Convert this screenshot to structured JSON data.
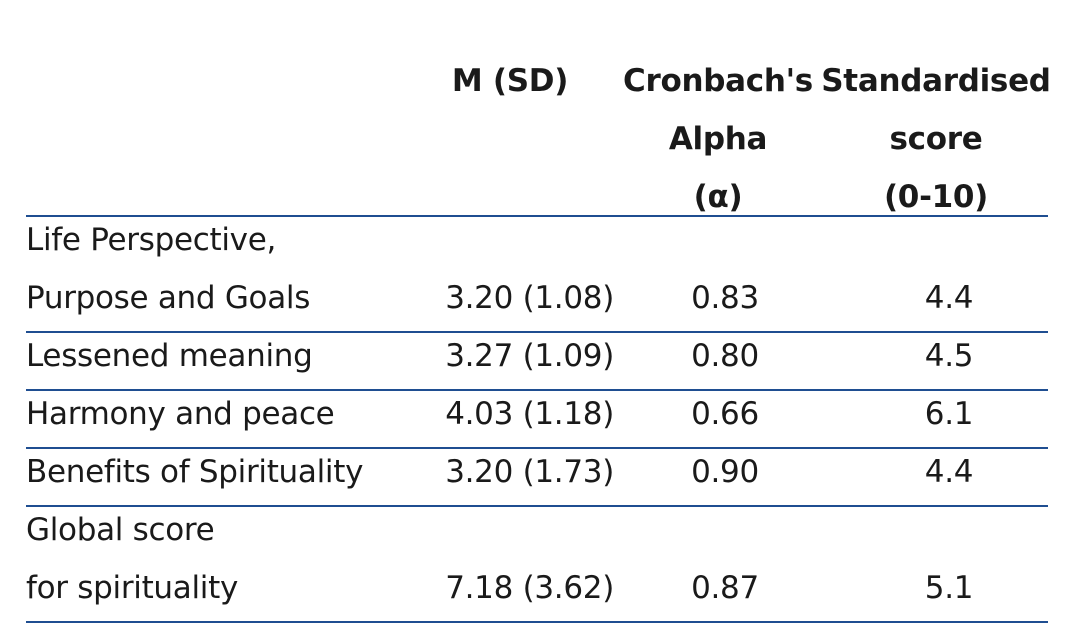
{
  "headers": {
    "msd": [
      "M (SD)"
    ],
    "alpha": [
      "Cronbach's",
      "Alpha",
      "(α)"
    ],
    "std": [
      "Standardised",
      "score",
      "(0-10)"
    ]
  },
  "rows": [
    {
      "label": [
        "Life Perspective,",
        "Purpose and Goals"
      ],
      "msd": "3.20 (1.08)",
      "alpha": "0.83",
      "std": "4.4"
    },
    {
      "label": [
        "Lessened meaning"
      ],
      "msd": "3.27 (1.09)",
      "alpha": "0.80",
      "std": "4.5"
    },
    {
      "label": [
        "Harmony and peace"
      ],
      "msd": "4.03 (1.18)",
      "alpha": "0.66",
      "std": "6.1"
    },
    {
      "label": [
        "Benefits of Spirituality"
      ],
      "msd": "3.20 (1.73)",
      "alpha": "0.90",
      "std": "4.4"
    },
    {
      "label": [
        "Global score",
        "for spirituality"
      ],
      "msd": "7.18 (3.62)",
      "alpha": "0.87",
      "std": "5.1"
    }
  ],
  "colors": {
    "rule": "#1f4e91",
    "text": "#1a1a1a"
  }
}
